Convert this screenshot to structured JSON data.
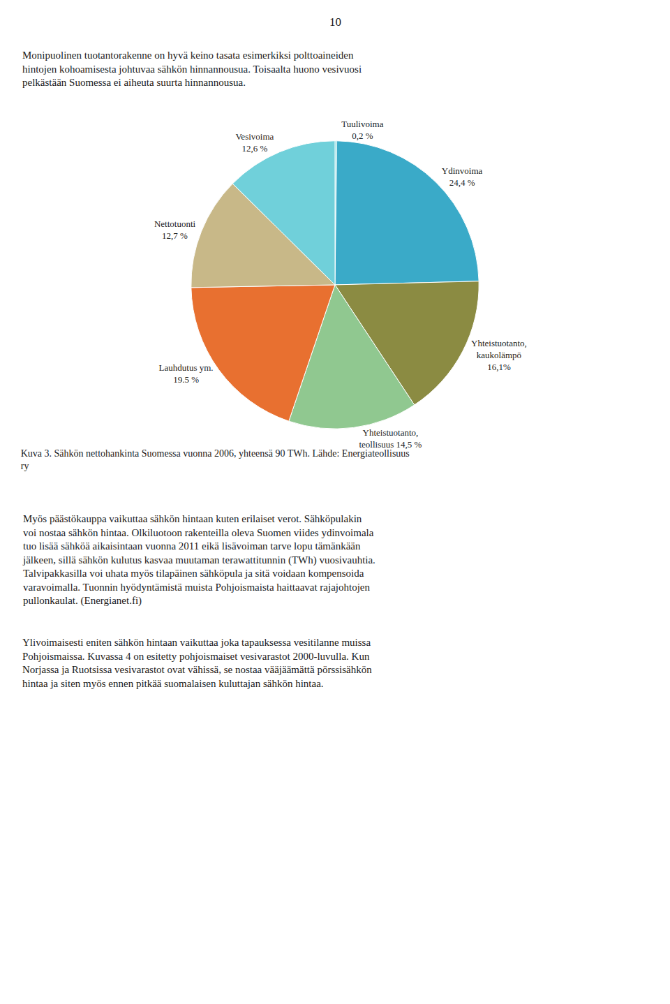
{
  "chart_data": {
    "type": "pie",
    "title": "Kuva 3. Sähkön nettohankinta Suomessa vuonna 2006, yhteensä 90 TWh. Lähde: Energiateollisuus\nry",
    "subtitle": "Monipuolinen tuotantorakenne on hyvä keino tasata esimerkiksi polttoaineiden\nhintojen kohoamisesta johtuvaa sähkön hinnannousua. Toisaalta huono vesivuosi\npelkästään Suomessa ei aiheuta suurta hinnannousua.",
    "categories": [
      "Tuulivoima\n0,2 %",
      "Ydinvoima\n24,4 %",
      "Yhteistuotanto,\nkaukolämpö\n16,1%",
      "Yhteistuotanto,\nteollisuus 14,5 %",
      "Lauhdutus ym.\n19.5 %",
      "Nettotuonti\n12,7 %",
      "Vesivoima\n12,6 %"
    ],
    "values": [
      0.2,
      24.4,
      16.1,
      14.5,
      19.5,
      12.7,
      12.6
    ],
    "colors": [
      "#58C8D2",
      "#3AAAC8",
      "#8B8B42",
      "#90C890",
      "#E87030",
      "#C8B888",
      "#70D0DA"
    ],
    "annotations": [
      "10",
      "Myös päästökauppa vaikuttaa sähkön hintaan kuten erilaiset verot. Sähköpulakin\nvoi nostaa sähkön hintaa. Olkiluotoon rakenteilla oleva Suomen viides ydinvoimala\ntuo lisää sähköä aikaisintaan vuonna 2011 eikä lisävoiman tarve lopu tämänkään\njälkeen, sillä sähkön kulutus kasvaa muutaman terawattitunnin (TWh) vuosivauhtia.\nTalvipakkasilla voi uhata myös tilapäinen sähköpula ja sitä voidaan kompensoida\nvaravoimalla. Tuonnin hyödyntämistä muista Pohjoismaista haittaavat rajajohtojen\npullonkaulat. (Energianet.fi)",
      "Ylivoimaisesti eniten sähkön hintaan vaikuttaa joka tapauksessa vesitilanne muissa\nPohjoismaissa. Kuvassa 4 on esitetty pohjoismaiset vesivarastot 2000-luvulla. Kun\nNorjassa ja Ruotsissa vesivarastot ovat vähissä, se nostaa vääjäämättä pörssisähkön\nhintaa ja siten myös ennen pitkää suomalaisen kuluttajan sähkön hintaa."
    ]
  }
}
